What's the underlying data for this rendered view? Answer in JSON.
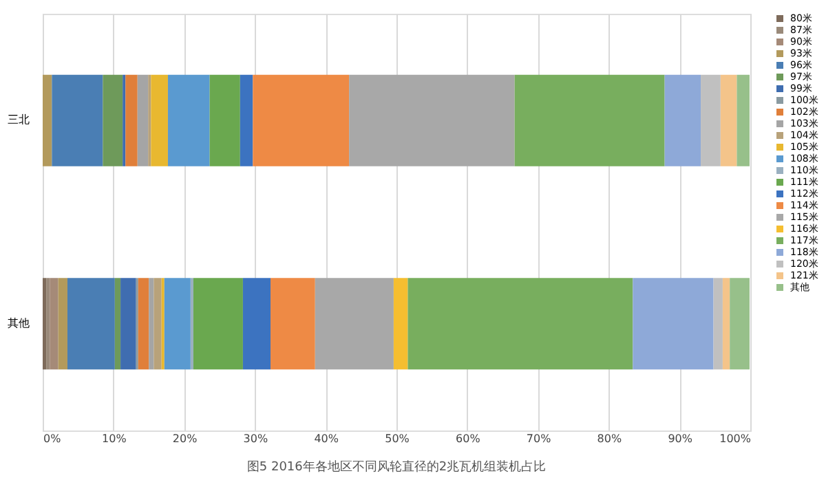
{
  "chart_data": {
    "type": "bar",
    "orientation": "horizontal",
    "stacked": true,
    "title": "图5 2016年各地区不同风轮直径的2兆瓦机组装机占比",
    "categories": [
      "三北",
      "其他"
    ],
    "series": [
      {
        "name": "80米",
        "color": "#7e6b5b",
        "values": [
          0,
          0.5
        ]
      },
      {
        "name": "87米",
        "color": "#9a8a7a",
        "values": [
          0,
          0.5
        ]
      },
      {
        "name": "90米",
        "color": "#a58a78",
        "values": [
          0,
          1.2
        ]
      },
      {
        "name": "93米",
        "color": "#b39a5c",
        "values": [
          1.3,
          1.3
        ]
      },
      {
        "name": "96米",
        "color": "#4a7eb4",
        "values": [
          7.2,
          6.7
        ]
      },
      {
        "name": "97米",
        "color": "#6e9a5a",
        "values": [
          2.8,
          0.8
        ]
      },
      {
        "name": "99米",
        "color": "#3f6db0",
        "values": [
          0.4,
          2.2
        ]
      },
      {
        "name": "100米",
        "color": "#8a9aa0",
        "values": [
          0,
          0.3
        ]
      },
      {
        "name": "102米",
        "color": "#e07f3a",
        "values": [
          1.7,
          1.5
        ]
      },
      {
        "name": "103米",
        "color": "#a5a5a5",
        "values": [
          1.5,
          0.7
        ]
      },
      {
        "name": "104米",
        "color": "#b8a27a",
        "values": [
          0.4,
          1.1
        ]
      },
      {
        "name": "105米",
        "color": "#e8b830",
        "values": [
          2.4,
          0.4
        ]
      },
      {
        "name": "108米",
        "color": "#5a9ad0",
        "values": [
          5.9,
          3.7
        ]
      },
      {
        "name": "110米",
        "color": "#9ab0c0",
        "values": [
          0,
          0.4
        ]
      },
      {
        "name": "111米",
        "color": "#6aa84f",
        "values": [
          4.3,
          7.0
        ]
      },
      {
        "name": "112米",
        "color": "#3c73c0",
        "values": [
          1.8,
          3.9
        ]
      },
      {
        "name": "114米",
        "color": "#ee8a45",
        "values": [
          13.6,
          6.3
        ]
      },
      {
        "name": "115米",
        "color": "#a8a8a8",
        "values": [
          23.4,
          11.1
        ]
      },
      {
        "name": "116米",
        "color": "#f5be30",
        "values": [
          0,
          2.0
        ]
      },
      {
        "name": "117米",
        "color": "#78ae5e",
        "values": [
          21.2,
          31.8
        ]
      },
      {
        "name": "118米",
        "color": "#8ea9d8",
        "values": [
          5.1,
          11.4
        ]
      },
      {
        "name": "120米",
        "color": "#c0c0c0",
        "values": [
          2.8,
          1.3
        ]
      },
      {
        "name": "121米",
        "color": "#f4c48a",
        "values": [
          2.3,
          1.0
        ]
      },
      {
        "name": "其他",
        "color": "#97c08a",
        "values": [
          1.8,
          2.8
        ]
      }
    ],
    "xlim": [
      0,
      100
    ],
    "xticks": [
      {
        "value": 0,
        "label": "0%"
      },
      {
        "value": 10,
        "label": "10%"
      },
      {
        "value": 20,
        "label": "20%"
      },
      {
        "value": 30,
        "label": "30%"
      },
      {
        "value": 40,
        "label": "40%"
      },
      {
        "value": 50,
        "label": "50%"
      },
      {
        "value": 60,
        "label": "60%"
      },
      {
        "value": 70,
        "label": "70%"
      },
      {
        "value": 80,
        "label": "80%"
      },
      {
        "value": 90,
        "label": "90%"
      },
      {
        "value": 100,
        "label": "100%"
      }
    ],
    "grid": "x",
    "legend": "right"
  }
}
